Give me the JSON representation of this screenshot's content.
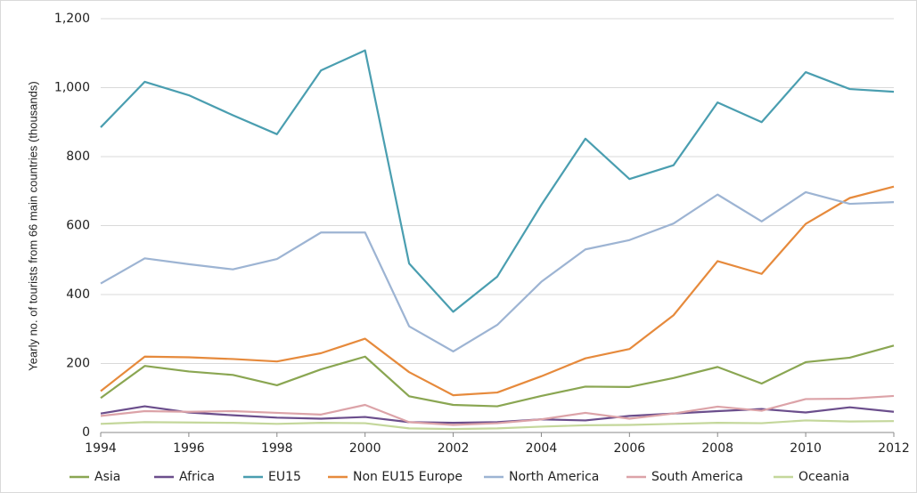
{
  "chart_data": {
    "type": "line",
    "y_label": "Yearly no. of tourists from 66 main countries (thousands)",
    "x": [
      1994,
      1995,
      1996,
      1997,
      1998,
      1999,
      2000,
      2001,
      2002,
      2003,
      2004,
      2005,
      2006,
      2007,
      2008,
      2009,
      2010,
      2011,
      2012
    ],
    "xlim": [
      1994,
      2012
    ],
    "xticks": [
      1994,
      1996,
      1998,
      2000,
      2002,
      2004,
      2006,
      2008,
      2010,
      2012
    ],
    "ylim": [
      0,
      1200
    ],
    "yticks": [
      0,
      200,
      400,
      600,
      800,
      {
        "value": 1000,
        "label": "1,000"
      },
      {
        "value": 1200,
        "label": "1,200"
      }
    ],
    "grid": true,
    "legend": "bottom",
    "series": [
      {
        "name": "Asia",
        "color": "#8aa652",
        "values": [
          100,
          193,
          177,
          167,
          137,
          183,
          220,
          105,
          80,
          76,
          106,
          133,
          132,
          158,
          190,
          142,
          204,
          217,
          252
        ]
      },
      {
        "name": "Africa",
        "color": "#6b4e8c",
        "values": [
          55,
          76,
          58,
          50,
          43,
          40,
          45,
          30,
          28,
          30,
          38,
          35,
          48,
          55,
          62,
          68,
          58,
          73,
          60
        ]
      },
      {
        "name": "EU15",
        "color": "#4a9eb0",
        "values": [
          885,
          1017,
          978,
          920,
          865,
          1050,
          1108,
          490,
          350,
          452,
          660,
          852,
          735,
          775,
          957,
          900,
          1045,
          996,
          988
        ]
      },
      {
        "name": "Non EU15 Europe",
        "color": "#e68a3c",
        "values": [
          120,
          220,
          218,
          213,
          206,
          230,
          272,
          175,
          108,
          116,
          163,
          215,
          242,
          340,
          497,
          460,
          605,
          680,
          713
        ]
      },
      {
        "name": "North America",
        "color": "#9db4d3",
        "values": [
          432,
          505,
          488,
          473,
          503,
          580,
          580,
          308,
          235,
          312,
          437,
          531,
          558,
          606,
          690,
          612,
          697,
          663,
          668
        ]
      },
      {
        "name": "South America",
        "color": "#dca3a8",
        "values": [
          48,
          62,
          60,
          62,
          57,
          52,
          80,
          30,
          22,
          27,
          38,
          57,
          40,
          55,
          75,
          63,
          97,
          98,
          106
        ]
      },
      {
        "name": "Oceania",
        "color": "#c4d79b",
        "values": [
          25,
          30,
          29,
          28,
          25,
          28,
          27,
          12,
          10,
          12,
          17,
          21,
          22,
          25,
          28,
          27,
          35,
          32,
          33
        ]
      }
    ]
  }
}
